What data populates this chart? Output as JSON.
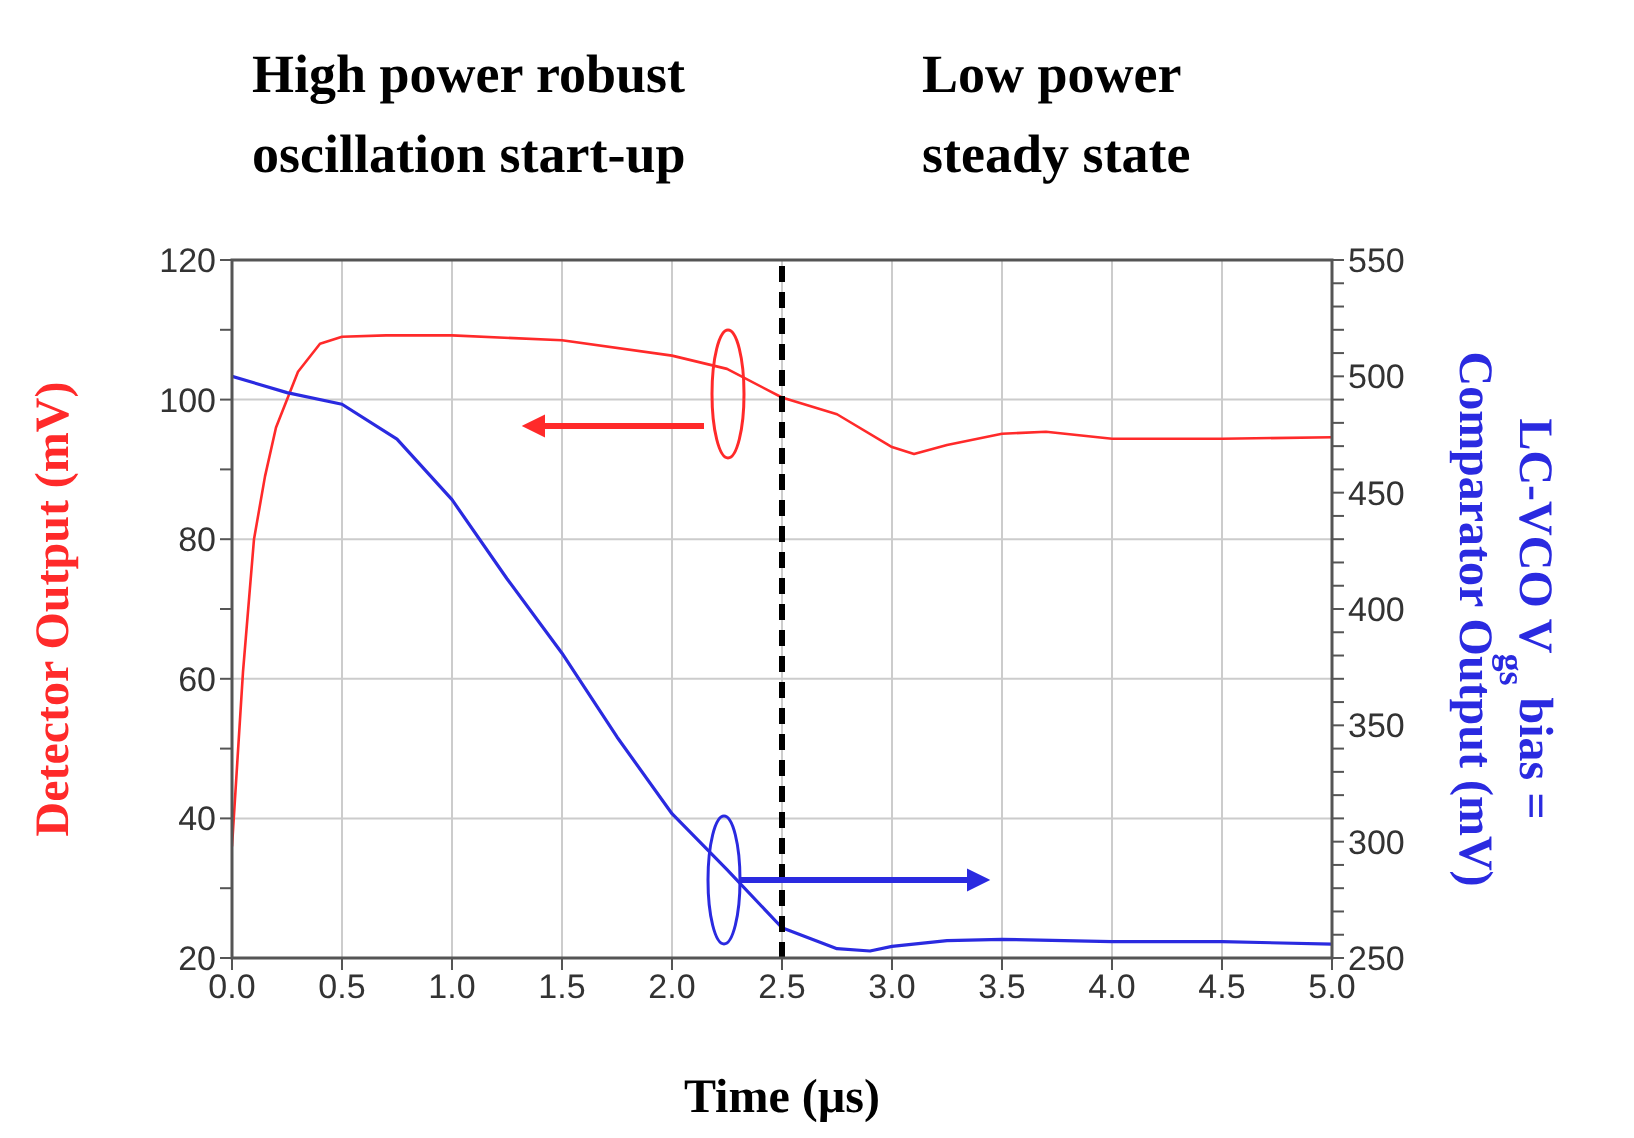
{
  "chart_data": {
    "type": "line",
    "xlabel": "Time (µs)",
    "ylabel": "Detector Output (mV)",
    "y2label": "LC-VCO V$_{gs}$ bias = Comparator Output (mV)",
    "annotations": [
      "High power robust oscillation start-up",
      "Low power steady state"
    ],
    "series": [
      {
        "color": "#ff2a2a",
        "x": [
          0,
          0.05,
          0.1,
          0.15,
          0.2,
          0.3,
          0.4,
          0.5,
          0.7,
          1.0,
          1.5,
          2.0,
          2.25,
          2.5,
          2.75,
          3.0,
          3.1,
          3.25,
          3.5,
          3.7,
          4.0,
          4.5,
          5.0
        ],
        "values": [
          36,
          61,
          80,
          89,
          96,
          104,
          108,
          109,
          109.2,
          109.2,
          108.5,
          106.3,
          104.4,
          100.3,
          97.9,
          93.2,
          92.2,
          93.5,
          95.1,
          95.4,
          94.4,
          94.4,
          94.6
        ]
      },
      {
        "color": "#2a2ae0",
        "axis": "y2",
        "x": [
          0,
          0.25,
          0.5,
          0.75,
          1.0,
          1.25,
          1.5,
          1.75,
          2.0,
          2.25,
          2.5,
          2.75,
          2.9,
          3.0,
          3.25,
          3.5,
          4.0,
          4.5,
          5.0
        ],
        "values": [
          500,
          493,
          488,
          473,
          447,
          413,
          381,
          345,
          312,
          288,
          263,
          254,
          253,
          255,
          257.5,
          258,
          257,
          257,
          256
        ]
      }
    ],
    "xlim": [
      0,
      5
    ],
    "xticks": [
      {
        "value": 0,
        "label": "0.0"
      },
      {
        "value": 0.5,
        "label": "0.5"
      },
      {
        "value": 1,
        "label": "1.0"
      },
      {
        "value": 1.5,
        "label": "1.5"
      },
      {
        "value": 2,
        "label": "2.0"
      },
      {
        "value": 2.5,
        "label": "2.5"
      },
      {
        "value": 3,
        "label": "3.0"
      },
      {
        "value": 3.5,
        "label": "3.5"
      },
      {
        "value": 4,
        "label": "4.0"
      },
      {
        "value": 4.5,
        "label": "4.5"
      },
      {
        "value": 5,
        "label": "5.0"
      }
    ],
    "ylim": [
      20,
      120
    ],
    "yticks": [
      20,
      {
        "value": 30,
        "label": null
      },
      40,
      {
        "value": 50,
        "label": null
      },
      60,
      {
        "value": 70,
        "label": null
      },
      80,
      {
        "value": 90,
        "label": null
      },
      100,
      {
        "value": 110,
        "label": null
      },
      120
    ],
    "y2lim": [
      250,
      550
    ],
    "y2ticks": [
      250,
      {
        "value": 260,
        "label": null
      },
      {
        "value": 270,
        "label": null
      },
      {
        "value": 280,
        "label": null
      },
      {
        "value": 290,
        "label": null
      },
      300,
      {
        "value": 310,
        "label": null
      },
      {
        "value": 320,
        "label": null
      },
      {
        "value": 330,
        "label": null
      },
      {
        "value": 340,
        "label": null
      },
      350,
      {
        "value": 360,
        "label": null
      },
      {
        "value": 370,
        "label": null
      },
      {
        "value": 380,
        "label": null
      },
      {
        "value": 390,
        "label": null
      },
      400,
      {
        "value": 410,
        "label": null
      },
      {
        "value": 420,
        "label": null
      },
      {
        "value": 430,
        "label": null
      },
      {
        "value": 440,
        "label": null
      },
      450,
      {
        "value": 460,
        "label": null
      },
      {
        "value": 470,
        "label": null
      },
      {
        "value": 480,
        "label": null
      },
      {
        "value": 490,
        "label": null
      },
      500,
      {
        "value": 510,
        "label": null
      },
      {
        "value": 520,
        "label": null
      },
      {
        "value": 530,
        "label": null
      },
      {
        "value": 540,
        "label": null
      },
      550
    ],
    "ref_lines": [
      {
        "axis": "x",
        "value": 2.5,
        "color": "#000000",
        "line_style": "dashed"
      }
    ],
    "grid": true
  }
}
